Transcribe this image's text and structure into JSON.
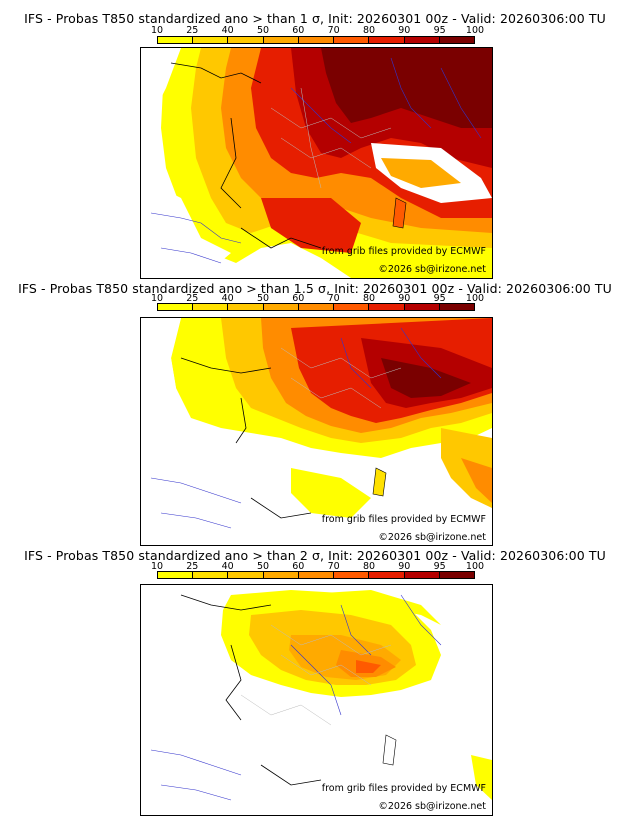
{
  "panels": [
    {
      "title": "IFS - Probas T850  standardized ano > than 1 σ, Init: 20260301 00z - Valid: 20260306:00 TU",
      "threshold": "1 σ"
    },
    {
      "title": "IFS - Probas T850  standardized ano > than 1.5 σ, Init: 20260301 00z - Valid: 20260306:00 TU",
      "threshold": "1.5 σ"
    },
    {
      "title": "IFS - Probas T850  standardized ano > than 2 σ, Init: 20260301 00z - Valid: 20260306:00 TU",
      "threshold": "2 σ"
    }
  ],
  "scale": {
    "labels": [
      "10",
      "25",
      "40",
      "50",
      "60",
      "70",
      "80",
      "90",
      "95",
      "100"
    ],
    "colors": [
      "#ffff00",
      "#ffe100",
      "#ffc800",
      "#ffaa00",
      "#ff8c00",
      "#ff5a00",
      "#e61e00",
      "#b40000",
      "#7a0000"
    ]
  },
  "credits": {
    "source": "from grib files provided by ECMWF",
    "copyright": "©2026 sb@irizone.net"
  }
}
